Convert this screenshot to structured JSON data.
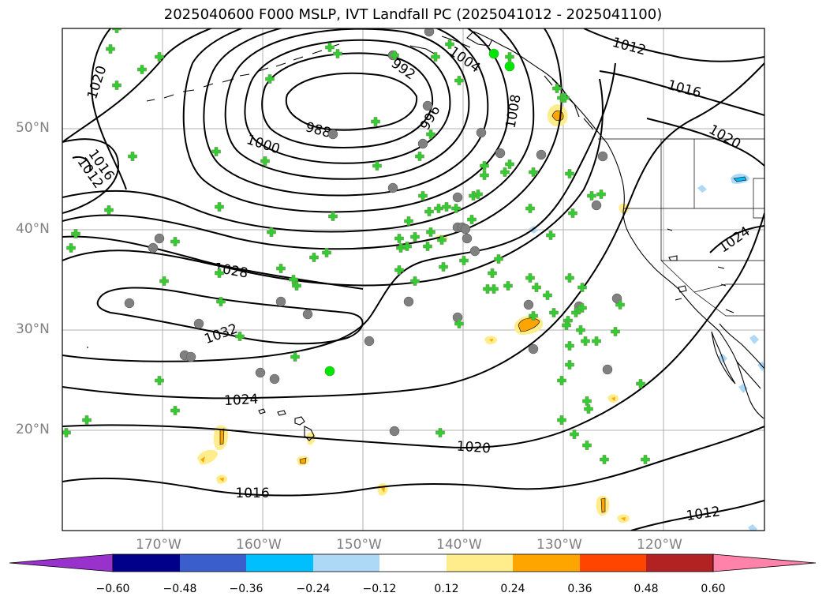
{
  "title": "2025040600 F000 MSLP, IVT Landfall PC (2025041012 - 2025041100)",
  "map": {
    "lon_range": [
      -180,
      -110
    ],
    "lat_range": [
      10,
      60
    ],
    "lat_labels": [
      "50°N",
      "40°N",
      "30°N",
      "20°N"
    ],
    "lon_labels": [
      "170°W",
      "160°W",
      "150°W",
      "140°W",
      "130°W",
      "120°W"
    ]
  },
  "isobars": {
    "low_center_label": "988",
    "labels": [
      "1020",
      "1016",
      "1012",
      "992",
      "1004",
      "1012",
      "1016",
      "988",
      "996",
      "1008",
      "1020",
      "1000",
      "1028",
      "1024",
      "1032",
      "1024",
      "1020",
      "1016",
      "1012"
    ]
  },
  "colorbar": {
    "ticks": [
      "−0.60",
      "−0.48",
      "−0.36",
      "−0.24",
      "−0.12",
      "0.12",
      "0.24",
      "0.36",
      "0.48",
      "0.60"
    ],
    "colors": [
      "#9932cc",
      "#00008b",
      "#3a5fcd",
      "#00bfff",
      "#add8f6",
      "#ffffff",
      "#ffec8b",
      "#ffa500",
      "#ff4500",
      "#b22222",
      "#ff82ab"
    ]
  }
}
